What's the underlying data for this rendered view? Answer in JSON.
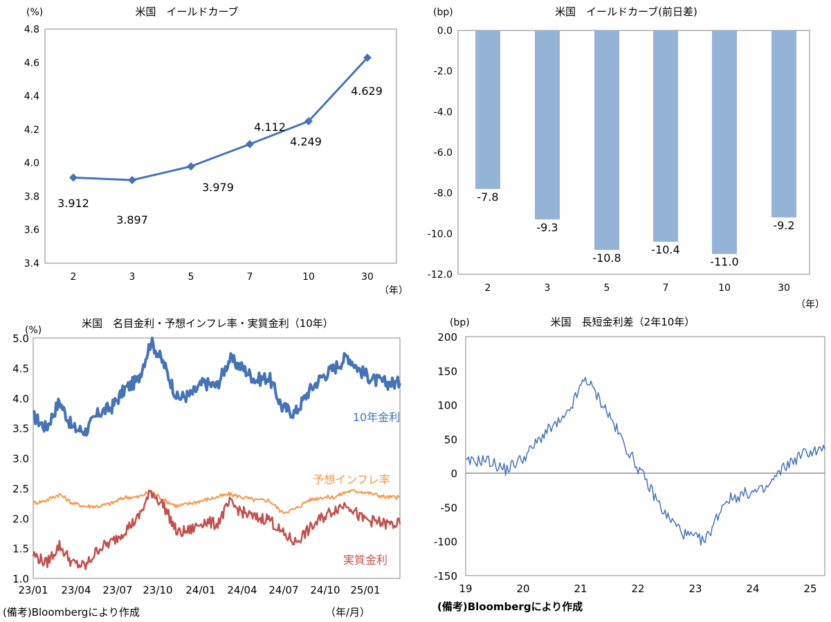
{
  "charts": {
    "yield_curve": {
      "title": "米国　イールドカーブ",
      "yunit": "(%)",
      "xunit": "（年）",
      "yticks": [
        "3.4",
        "3.6",
        "3.8",
        "4.0",
        "4.2",
        "4.4",
        "4.6",
        "4.8"
      ],
      "data_labels": [
        "3.912",
        "3.897",
        "3.979",
        "4.112",
        "4.249",
        "4.629"
      ]
    },
    "yield_change": {
      "title": "米国　イールドカーブ(前日差)",
      "yunit": "(bp)",
      "xunit": "（年）",
      "yticks": [
        "0.0",
        "-2.0",
        "-4.0",
        "-6.0",
        "-8.0",
        "-10.0",
        "-12.0"
      ],
      "data_labels": [
        "-7.8",
        "-9.3",
        "-10.8",
        "-10.4",
        "-11.0",
        "-9.2"
      ]
    },
    "real_rates": {
      "title": "米国　名目金利・予想インフレ率・実質金利（10年）",
      "yunit": "(%)",
      "xunit": "（年/月）",
      "source": "(備考)Bloombergにより作成",
      "yticks": [
        "1.0",
        "1.5",
        "2.0",
        "2.5",
        "3.0",
        "3.5",
        "4.0",
        "4.5",
        "5.0"
      ],
      "xticks": [
        "23/01",
        "23/04",
        "23/07",
        "23/10",
        "24/01",
        "24/04",
        "24/07",
        "24/10",
        "25/01"
      ],
      "series_labels": [
        "10年金利",
        "予想インフレ率",
        "実質金利"
      ]
    },
    "spread": {
      "title": "米国　長短金利差（2年10年）",
      "yunit": "(bp)",
      "source": "(備考)Bloombergにより作成",
      "yticks": [
        "200",
        "150",
        "100",
        "50",
        "0",
        "-50",
        "-100",
        "-150"
      ],
      "xticks": [
        "19",
        "20",
        "21",
        "22",
        "23",
        "24",
        "25"
      ]
    }
  },
  "colors": {
    "blue": "#4573b6",
    "bar": "#95b3d7",
    "orange": "#f79646",
    "red": "#c0504d",
    "axis": "#868686"
  },
  "chart_data": [
    {
      "type": "line",
      "title": "米国　イールドカーブ",
      "x": [
        "2",
        "3",
        "5",
        "7",
        "10",
        "30"
      ],
      "values": [
        3.912,
        3.897,
        3.979,
        4.112,
        4.249,
        4.629
      ],
      "ylim": [
        3.4,
        4.8
      ]
    },
    {
      "type": "bar",
      "title": "米国　イールドカーブ(前日差)",
      "categories": [
        "2",
        "3",
        "5",
        "7",
        "10",
        "30"
      ],
      "values": [
        -7.8,
        -9.3,
        -10.8,
        -10.4,
        -11.0,
        -9.2
      ],
      "ylim": [
        -12,
        0
      ]
    },
    {
      "type": "line",
      "title": "米国　名目金利・予想インフレ率・実質金利（10年）",
      "ylim": [
        1.0,
        5.0
      ],
      "x_range": [
        "2023-01",
        "2025-05"
      ],
      "series": [
        {
          "name": "10年金利",
          "x": [
            "2023-01",
            "2023-02",
            "2023-03",
            "2023-04",
            "2023-05",
            "2023-06",
            "2023-07",
            "2023-08",
            "2023-09",
            "2023-10",
            "2023-11",
            "2023-12",
            "2024-01",
            "2024-02",
            "2024-03",
            "2024-04",
            "2024-05",
            "2024-06",
            "2024-07",
            "2024-08",
            "2024-09",
            "2024-10",
            "2024-11",
            "2024-12",
            "2025-01",
            "2025-02",
            "2025-03",
            "2025-04",
            "2025-05"
          ],
          "values": [
            3.7,
            3.5,
            3.95,
            3.5,
            3.45,
            3.75,
            3.85,
            4.15,
            4.3,
            4.95,
            4.55,
            4.0,
            4.05,
            4.25,
            4.2,
            4.65,
            4.5,
            4.3,
            4.35,
            3.85,
            3.75,
            4.1,
            4.35,
            4.5,
            4.7,
            4.45,
            4.3,
            4.25,
            4.25
          ]
        },
        {
          "name": "予想インフレ率",
          "x": [
            "2023-01",
            "2023-02",
            "2023-03",
            "2023-04",
            "2023-05",
            "2023-06",
            "2023-07",
            "2023-08",
            "2023-09",
            "2023-10",
            "2023-11",
            "2023-12",
            "2024-01",
            "2024-02",
            "2024-03",
            "2024-04",
            "2024-05",
            "2024-06",
            "2024-07",
            "2024-08",
            "2024-09",
            "2024-10",
            "2024-11",
            "2024-12",
            "2025-01",
            "2025-02",
            "2025-03",
            "2025-04",
            "2025-05"
          ],
          "values": [
            2.25,
            2.3,
            2.4,
            2.25,
            2.2,
            2.2,
            2.25,
            2.35,
            2.35,
            2.45,
            2.3,
            2.2,
            2.25,
            2.3,
            2.35,
            2.4,
            2.35,
            2.3,
            2.3,
            2.1,
            2.15,
            2.3,
            2.35,
            2.35,
            2.45,
            2.45,
            2.4,
            2.35,
            2.35
          ]
        },
        {
          "name": "実質金利",
          "x": [
            "2023-01",
            "2023-02",
            "2023-03",
            "2023-04",
            "2023-05",
            "2023-06",
            "2023-07",
            "2023-08",
            "2023-09",
            "2023-10",
            "2023-11",
            "2023-12",
            "2024-01",
            "2024-02",
            "2024-03",
            "2024-04",
            "2024-05",
            "2024-06",
            "2024-07",
            "2024-08",
            "2024-09",
            "2024-10",
            "2024-11",
            "2024-12",
            "2025-01",
            "2025-02",
            "2025-03",
            "2025-04",
            "2025-05"
          ],
          "values": [
            1.4,
            1.25,
            1.55,
            1.25,
            1.2,
            1.5,
            1.6,
            1.8,
            2.0,
            2.45,
            2.2,
            1.75,
            1.8,
            1.95,
            1.9,
            2.25,
            2.1,
            2.0,
            2.0,
            1.75,
            1.6,
            1.8,
            2.0,
            2.15,
            2.25,
            2.0,
            1.95,
            1.9,
            1.9
          ]
        }
      ]
    },
    {
      "type": "line",
      "title": "米国　長短金利差（2年10年）",
      "ylim": [
        -150,
        200
      ],
      "x": [
        "2019-01",
        "2019-07",
        "2020-01",
        "2020-07",
        "2021-01",
        "2021-03",
        "2021-07",
        "2022-01",
        "2022-04",
        "2022-07",
        "2023-01",
        "2023-03",
        "2023-07",
        "2023-10",
        "2024-01",
        "2024-07",
        "2024-10",
        "2025-01",
        "2025-04"
      ],
      "values": [
        15,
        20,
        5,
        25,
        60,
        80,
        140,
        95,
        40,
        -10,
        -60,
        -90,
        -100,
        -40,
        -30,
        -25,
        10,
        30,
        35
      ]
    }
  ]
}
